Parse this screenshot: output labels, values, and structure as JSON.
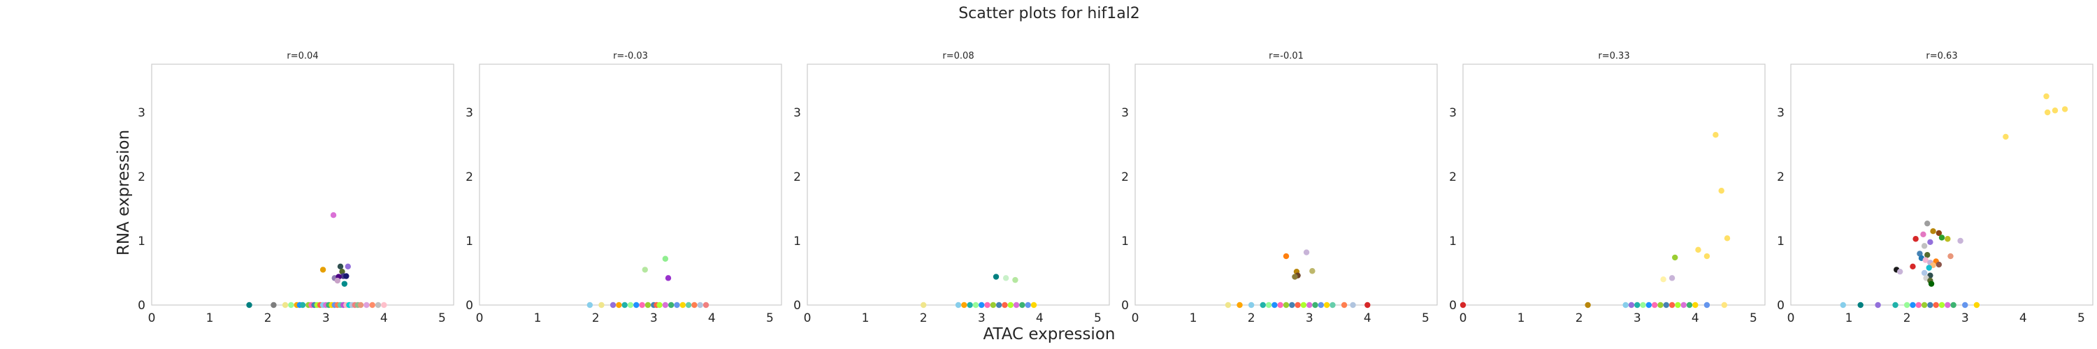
{
  "figure": {
    "title": "Scatter plots for hif1al2",
    "xlabel": "ATAC expression",
    "ylabel": "RNA expression"
  },
  "chart_data": [
    {
      "type": "scatter",
      "title": "r=0.04",
      "xlim": [
        0,
        5.2
      ],
      "ylim": [
        0,
        3.75
      ],
      "xticks": [
        "0",
        "1",
        "2",
        "3",
        "4",
        "5"
      ],
      "yticks": [
        "0",
        "1",
        "2",
        "3"
      ],
      "grid": false,
      "points": [
        {
          "x": 1.68,
          "y": 0.0,
          "c": "#008080"
        },
        {
          "x": 2.1,
          "y": 0.0,
          "c": "#7d7d7d"
        },
        {
          "x": 2.3,
          "y": 0.0,
          "c": "#f0e68c"
        },
        {
          "x": 2.4,
          "y": 0.0,
          "c": "#98fb98"
        },
        {
          "x": 2.5,
          "y": 0.0,
          "c": "#ffa500"
        },
        {
          "x": 2.55,
          "y": 0.0,
          "c": "#1e90ff"
        },
        {
          "x": 2.6,
          "y": 0.0,
          "c": "#20b2aa"
        },
        {
          "x": 2.7,
          "y": 0.0,
          "c": "#9acd32"
        },
        {
          "x": 2.75,
          "y": 0.0,
          "c": "#ff69b4"
        },
        {
          "x": 2.8,
          "y": 0.0,
          "c": "#4682b4"
        },
        {
          "x": 2.85,
          "y": 0.0,
          "c": "#adff2f"
        },
        {
          "x": 2.9,
          "y": 0.0,
          "c": "#ff6347"
        },
        {
          "x": 2.95,
          "y": 0.0,
          "c": "#87ceeb"
        },
        {
          "x": 3.0,
          "y": 0.0,
          "c": "#da70d6"
        },
        {
          "x": 3.05,
          "y": 0.0,
          "c": "#3cb371"
        },
        {
          "x": 3.1,
          "y": 0.0,
          "c": "#ffd700"
        },
        {
          "x": 3.15,
          "y": 0.0,
          "c": "#6495ed"
        },
        {
          "x": 3.2,
          "y": 0.0,
          "c": "#ff7f50"
        },
        {
          "x": 3.25,
          "y": 0.0,
          "c": "#66cdaa"
        },
        {
          "x": 3.3,
          "y": 0.0,
          "c": "#ba55d3"
        },
        {
          "x": 3.35,
          "y": 0.0,
          "c": "#ffb6c1"
        },
        {
          "x": 3.4,
          "y": 0.0,
          "c": "#00ced1"
        },
        {
          "x": 3.45,
          "y": 0.0,
          "c": "#b0c4de"
        },
        {
          "x": 3.5,
          "y": 0.0,
          "c": "#f08080"
        },
        {
          "x": 3.55,
          "y": 0.0,
          "c": "#8fbc8f"
        },
        {
          "x": 3.6,
          "y": 0.0,
          "c": "#e9967a"
        },
        {
          "x": 3.7,
          "y": 0.0,
          "c": "#dda0dd"
        },
        {
          "x": 3.8,
          "y": 0.0,
          "c": "#ff8c69"
        },
        {
          "x": 3.9,
          "y": 0.0,
          "c": "#c0c0c0"
        },
        {
          "x": 4.0,
          "y": 0.0,
          "c": "#ffc0cb"
        },
        {
          "x": 3.13,
          "y": 1.4,
          "c": "#da70d6"
        },
        {
          "x": 2.95,
          "y": 0.55,
          "c": "#e69f00"
        },
        {
          "x": 3.15,
          "y": 0.42,
          "c": "#8c7bb0"
        },
        {
          "x": 3.25,
          "y": 0.6,
          "c": "#2f4f4f"
        },
        {
          "x": 3.28,
          "y": 0.52,
          "c": "#556b2f"
        },
        {
          "x": 3.3,
          "y": 0.45,
          "c": "#483d8b"
        },
        {
          "x": 3.22,
          "y": 0.44,
          "c": "#4b0082"
        },
        {
          "x": 3.35,
          "y": 0.45,
          "c": "#191970"
        },
        {
          "x": 3.38,
          "y": 0.6,
          "c": "#9370db"
        },
        {
          "x": 3.32,
          "y": 0.33,
          "c": "#008b8b"
        },
        {
          "x": 3.2,
          "y": 0.38,
          "c": "#c8a2c8"
        }
      ]
    },
    {
      "type": "scatter",
      "title": "r=-0.03",
      "xlim": [
        0,
        5.2
      ],
      "ylim": [
        0,
        3.75
      ],
      "xticks": [
        "0",
        "1",
        "2",
        "3",
        "4",
        "5"
      ],
      "yticks": [
        "0",
        "1",
        "2",
        "3"
      ],
      "grid": false,
      "points": [
        {
          "x": 1.9,
          "y": 0.0,
          "c": "#87ceeb"
        },
        {
          "x": 2.1,
          "y": 0.0,
          "c": "#f0e68c"
        },
        {
          "x": 2.3,
          "y": 0.0,
          "c": "#9370db"
        },
        {
          "x": 2.4,
          "y": 0.0,
          "c": "#ffa500"
        },
        {
          "x": 2.5,
          "y": 0.0,
          "c": "#20b2aa"
        },
        {
          "x": 2.6,
          "y": 0.0,
          "c": "#98fb98"
        },
        {
          "x": 2.7,
          "y": 0.0,
          "c": "#1e90ff"
        },
        {
          "x": 2.8,
          "y": 0.0,
          "c": "#ff69b4"
        },
        {
          "x": 2.9,
          "y": 0.0,
          "c": "#9acd32"
        },
        {
          "x": 3.0,
          "y": 0.0,
          "c": "#4682b4"
        },
        {
          "x": 3.05,
          "y": 0.0,
          "c": "#ff6347"
        },
        {
          "x": 3.1,
          "y": 0.0,
          "c": "#adff2f"
        },
        {
          "x": 3.2,
          "y": 0.0,
          "c": "#da70d6"
        },
        {
          "x": 3.3,
          "y": 0.0,
          "c": "#3cb371"
        },
        {
          "x": 3.4,
          "y": 0.0,
          "c": "#6495ed"
        },
        {
          "x": 3.5,
          "y": 0.0,
          "c": "#ffd700"
        },
        {
          "x": 3.6,
          "y": 0.0,
          "c": "#66cdaa"
        },
        {
          "x": 3.7,
          "y": 0.0,
          "c": "#ff7f50"
        },
        {
          "x": 3.8,
          "y": 0.0,
          "c": "#b0c4de"
        },
        {
          "x": 3.9,
          "y": 0.0,
          "c": "#f08080"
        },
        {
          "x": 2.85,
          "y": 0.55,
          "c": "#b5e7a0"
        },
        {
          "x": 3.2,
          "y": 0.72,
          "c": "#90ee90"
        },
        {
          "x": 3.25,
          "y": 0.42,
          "c": "#9932cc"
        }
      ]
    },
    {
      "type": "scatter",
      "title": "r=0.08",
      "xlim": [
        0,
        5.2
      ],
      "ylim": [
        0,
        3.75
      ],
      "xticks": [
        "0",
        "1",
        "2",
        "3",
        "4",
        "5"
      ],
      "yticks": [
        "0",
        "1",
        "2",
        "3"
      ],
      "grid": false,
      "points": [
        {
          "x": 2.0,
          "y": 0.0,
          "c": "#f0e68c"
        },
        {
          "x": 2.6,
          "y": 0.0,
          "c": "#87ceeb"
        },
        {
          "x": 2.7,
          "y": 0.0,
          "c": "#ffa500"
        },
        {
          "x": 2.8,
          "y": 0.0,
          "c": "#20b2aa"
        },
        {
          "x": 2.9,
          "y": 0.0,
          "c": "#98fb98"
        },
        {
          "x": 3.0,
          "y": 0.0,
          "c": "#1e90ff"
        },
        {
          "x": 3.1,
          "y": 0.0,
          "c": "#ff69b4"
        },
        {
          "x": 3.2,
          "y": 0.0,
          "c": "#9acd32"
        },
        {
          "x": 3.3,
          "y": 0.0,
          "c": "#4682b4"
        },
        {
          "x": 3.4,
          "y": 0.0,
          "c": "#ff6347"
        },
        {
          "x": 3.5,
          "y": 0.0,
          "c": "#adff2f"
        },
        {
          "x": 3.6,
          "y": 0.0,
          "c": "#da70d6"
        },
        {
          "x": 3.7,
          "y": 0.0,
          "c": "#3cb371"
        },
        {
          "x": 3.8,
          "y": 0.0,
          "c": "#6495ed"
        },
        {
          "x": 3.9,
          "y": 0.0,
          "c": "#ffd700"
        },
        {
          "x": 3.25,
          "y": 0.44,
          "c": "#008080"
        },
        {
          "x": 3.42,
          "y": 0.42,
          "c": "#c8f0c8"
        },
        {
          "x": 3.58,
          "y": 0.39,
          "c": "#b5e7a0"
        }
      ]
    },
    {
      "type": "scatter",
      "title": "r=-0.01",
      "xlim": [
        0,
        5.2
      ],
      "ylim": [
        0,
        3.75
      ],
      "xticks": [
        "0",
        "1",
        "2",
        "3",
        "4",
        "5"
      ],
      "yticks": [
        "0",
        "1",
        "2",
        "3"
      ],
      "grid": false,
      "points": [
        {
          "x": 1.6,
          "y": 0.0,
          "c": "#f0e68c"
        },
        {
          "x": 1.8,
          "y": 0.0,
          "c": "#ffa500"
        },
        {
          "x": 2.0,
          "y": 0.0,
          "c": "#87ceeb"
        },
        {
          "x": 2.2,
          "y": 0.0,
          "c": "#20b2aa"
        },
        {
          "x": 2.3,
          "y": 0.0,
          "c": "#98fb98"
        },
        {
          "x": 2.4,
          "y": 0.0,
          "c": "#1e90ff"
        },
        {
          "x": 2.5,
          "y": 0.0,
          "c": "#ff69b4"
        },
        {
          "x": 2.6,
          "y": 0.0,
          "c": "#9acd32"
        },
        {
          "x": 2.7,
          "y": 0.0,
          "c": "#4682b4"
        },
        {
          "x": 2.8,
          "y": 0.0,
          "c": "#ff6347"
        },
        {
          "x": 2.9,
          "y": 0.0,
          "c": "#adff2f"
        },
        {
          "x": 3.0,
          "y": 0.0,
          "c": "#da70d6"
        },
        {
          "x": 3.1,
          "y": 0.0,
          "c": "#3cb371"
        },
        {
          "x": 3.2,
          "y": 0.0,
          "c": "#6495ed"
        },
        {
          "x": 3.3,
          "y": 0.0,
          "c": "#ffd700"
        },
        {
          "x": 3.4,
          "y": 0.0,
          "c": "#66cdaa"
        },
        {
          "x": 3.6,
          "y": 0.0,
          "c": "#ff7f50"
        },
        {
          "x": 3.75,
          "y": 0.0,
          "c": "#b0c4de"
        },
        {
          "x": 4.0,
          "y": 0.0,
          "c": "#d62728"
        },
        {
          "x": 2.6,
          "y": 0.76,
          "c": "#ff7f0e"
        },
        {
          "x": 2.95,
          "y": 0.82,
          "c": "#c8b4d8"
        },
        {
          "x": 2.78,
          "y": 0.52,
          "c": "#b8860b"
        },
        {
          "x": 2.8,
          "y": 0.46,
          "c": "#6b4226"
        },
        {
          "x": 2.75,
          "y": 0.44,
          "c": "#8b7d3a"
        },
        {
          "x": 3.05,
          "y": 0.53,
          "c": "#bdb76b"
        }
      ]
    },
    {
      "type": "scatter",
      "title": "r=0.33",
      "xlim": [
        0,
        5.2
      ],
      "ylim": [
        0,
        3.75
      ],
      "xticks": [
        "0",
        "1",
        "2",
        "3",
        "4",
        "5"
      ],
      "yticks": [
        "0",
        "1",
        "2",
        "3"
      ],
      "grid": false,
      "points": [
        {
          "x": 0.0,
          "y": 0.0,
          "c": "#d62728"
        },
        {
          "x": 2.15,
          "y": 0.0,
          "c": "#b8860b"
        },
        {
          "x": 2.8,
          "y": 0.0,
          "c": "#87ceeb"
        },
        {
          "x": 2.9,
          "y": 0.0,
          "c": "#9370db"
        },
        {
          "x": 3.0,
          "y": 0.0,
          "c": "#20b2aa"
        },
        {
          "x": 3.1,
          "y": 0.0,
          "c": "#98fb98"
        },
        {
          "x": 3.2,
          "y": 0.0,
          "c": "#1e90ff"
        },
        {
          "x": 3.3,
          "y": 0.0,
          "c": "#ff69b4"
        },
        {
          "x": 3.4,
          "y": 0.0,
          "c": "#9acd32"
        },
        {
          "x": 3.5,
          "y": 0.0,
          "c": "#4682b4"
        },
        {
          "x": 3.6,
          "y": 0.0,
          "c": "#ff6347"
        },
        {
          "x": 3.7,
          "y": 0.0,
          "c": "#adff2f"
        },
        {
          "x": 3.8,
          "y": 0.0,
          "c": "#da70d6"
        },
        {
          "x": 3.9,
          "y": 0.0,
          "c": "#3cb371"
        },
        {
          "x": 4.0,
          "y": 0.0,
          "c": "#ffd700"
        },
        {
          "x": 4.2,
          "y": 0.0,
          "c": "#6495ed"
        },
        {
          "x": 4.5,
          "y": 0.0,
          "c": "#ffe680"
        },
        {
          "x": 4.35,
          "y": 2.65,
          "c": "#ffe066"
        },
        {
          "x": 4.45,
          "y": 1.78,
          "c": "#ffe066"
        },
        {
          "x": 4.55,
          "y": 1.04,
          "c": "#ffe066"
        },
        {
          "x": 4.05,
          "y": 0.86,
          "c": "#ffe066"
        },
        {
          "x": 4.2,
          "y": 0.76,
          "c": "#ffe066"
        },
        {
          "x": 3.65,
          "y": 0.74,
          "c": "#9acd32"
        },
        {
          "x": 3.45,
          "y": 0.4,
          "c": "#fff2a8"
        },
        {
          "x": 3.6,
          "y": 0.42,
          "c": "#c8b4d8"
        }
      ]
    },
    {
      "type": "scatter",
      "title": "r=0.63",
      "xlim": [
        0,
        5.2
      ],
      "ylim": [
        0,
        3.75
      ],
      "xticks": [
        "0",
        "1",
        "2",
        "3",
        "4",
        "5"
      ],
      "yticks": [
        "0",
        "1",
        "2",
        "3"
      ],
      "grid": false,
      "points": [
        {
          "x": 0.9,
          "y": 0.0,
          "c": "#87ceeb"
        },
        {
          "x": 1.2,
          "y": 0.0,
          "c": "#008080"
        },
        {
          "x": 1.5,
          "y": 0.0,
          "c": "#9370db"
        },
        {
          "x": 1.8,
          "y": 0.0,
          "c": "#20b2aa"
        },
        {
          "x": 2.0,
          "y": 0.0,
          "c": "#98fb98"
        },
        {
          "x": 2.1,
          "y": 0.0,
          "c": "#1e90ff"
        },
        {
          "x": 2.2,
          "y": 0.0,
          "c": "#ff69b4"
        },
        {
          "x": 2.3,
          "y": 0.0,
          "c": "#9acd32"
        },
        {
          "x": 2.4,
          "y": 0.0,
          "c": "#4682b4"
        },
        {
          "x": 2.5,
          "y": 0.0,
          "c": "#ff6347"
        },
        {
          "x": 2.6,
          "y": 0.0,
          "c": "#adff2f"
        },
        {
          "x": 2.7,
          "y": 0.0,
          "c": "#da70d6"
        },
        {
          "x": 2.8,
          "y": 0.0,
          "c": "#3cb371"
        },
        {
          "x": 3.0,
          "y": 0.0,
          "c": "#6495ed"
        },
        {
          "x": 3.2,
          "y": 0.0,
          "c": "#ffd700"
        },
        {
          "x": 4.4,
          "y": 3.25,
          "c": "#ffe066"
        },
        {
          "x": 4.72,
          "y": 3.05,
          "c": "#ffe066"
        },
        {
          "x": 4.55,
          "y": 3.03,
          "c": "#ffe066"
        },
        {
          "x": 4.42,
          "y": 3.0,
          "c": "#ffe066"
        },
        {
          "x": 3.7,
          "y": 2.62,
          "c": "#ffe066"
        },
        {
          "x": 2.35,
          "y": 1.27,
          "c": "#9e9e9e"
        },
        {
          "x": 2.45,
          "y": 1.15,
          "c": "#b8860b"
        },
        {
          "x": 2.55,
          "y": 1.12,
          "c": "#8b4513"
        },
        {
          "x": 2.28,
          "y": 1.1,
          "c": "#e377c2"
        },
        {
          "x": 2.15,
          "y": 1.03,
          "c": "#d62728"
        },
        {
          "x": 2.4,
          "y": 0.98,
          "c": "#9370db"
        },
        {
          "x": 2.6,
          "y": 1.05,
          "c": "#2ca02c"
        },
        {
          "x": 2.7,
          "y": 1.03,
          "c": "#bcbd22"
        },
        {
          "x": 2.92,
          "y": 1.0,
          "c": "#c8b4d8"
        },
        {
          "x": 2.3,
          "y": 0.92,
          "c": "#c0c0c0"
        },
        {
          "x": 2.22,
          "y": 0.8,
          "c": "#4682b4"
        },
        {
          "x": 2.35,
          "y": 0.78,
          "c": "#556b2f"
        },
        {
          "x": 2.75,
          "y": 0.76,
          "c": "#e9967a"
        },
        {
          "x": 2.25,
          "y": 0.73,
          "c": "#1f77b4"
        },
        {
          "x": 2.32,
          "y": 0.7,
          "c": "#f7b6d2"
        },
        {
          "x": 2.5,
          "y": 0.68,
          "c": "#ff7f0e"
        },
        {
          "x": 2.4,
          "y": 0.66,
          "c": "#c5b0d5"
        },
        {
          "x": 2.1,
          "y": 0.6,
          "c": "#d62728"
        },
        {
          "x": 2.45,
          "y": 0.62,
          "c": "#ffbb78"
        },
        {
          "x": 2.55,
          "y": 0.63,
          "c": "#8c564b"
        },
        {
          "x": 2.38,
          "y": 0.58,
          "c": "#17becf"
        },
        {
          "x": 1.82,
          "y": 0.55,
          "c": "#1a1a1a"
        },
        {
          "x": 1.88,
          "y": 0.52,
          "c": "#c8b4d8"
        },
        {
          "x": 2.3,
          "y": 0.5,
          "c": "#aec7e8"
        },
        {
          "x": 2.4,
          "y": 0.46,
          "c": "#2f4f4f"
        },
        {
          "x": 2.33,
          "y": 0.42,
          "c": "#d3d3d3"
        },
        {
          "x": 2.4,
          "y": 0.38,
          "c": "#556b2f"
        },
        {
          "x": 2.42,
          "y": 0.33,
          "c": "#006400"
        }
      ]
    }
  ]
}
